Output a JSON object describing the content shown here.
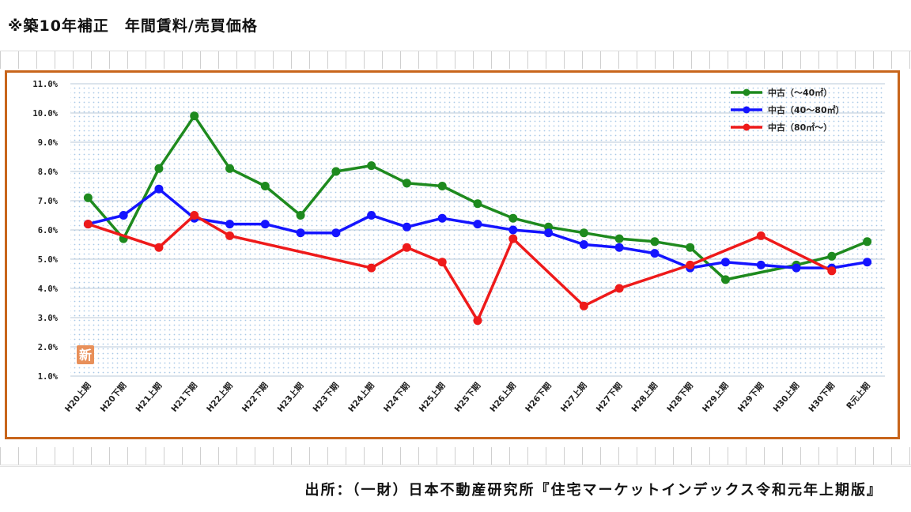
{
  "title": "※築10年補正　年間賃料/売買価格",
  "source": "出所：（一財）日本不動産研究所『住宅マーケットインデックス令和元年上期版』",
  "stamp_label": "新",
  "colors": {
    "frame": "#c8651b",
    "plot_dots": "#a9c8e6",
    "gridline": "#b8c8d8",
    "stamp": "#e8905a"
  },
  "chart_data": {
    "type": "line",
    "categories": [
      "H20上期",
      "H20下期",
      "H21上期",
      "H21下期",
      "H22上期",
      "H22下期",
      "H23上期",
      "H23下期",
      "H24上期",
      "H24下期",
      "H25上期",
      "H25下期",
      "H26上期",
      "H26下期",
      "H27上期",
      "H27下期",
      "H28上期",
      "H28下期",
      "H29上期",
      "H29下期",
      "H30上期",
      "H30下期",
      "R元上期"
    ],
    "y_ticks": [
      "1.0%",
      "2.0%",
      "3.0%",
      "4.0%",
      "5.0%",
      "6.0%",
      "7.0%",
      "8.0%",
      "9.0%",
      "10.0%",
      "11.0%"
    ],
    "ylim": [
      1.0,
      11.0
    ],
    "grid": true,
    "legend_position": "top-right",
    "series": [
      {
        "name": "中古（～40㎡）",
        "color": "#1e8a1e",
        "values": [
          7.1,
          5.7,
          8.1,
          9.9,
          8.1,
          7.5,
          6.5,
          8.0,
          8.2,
          7.6,
          7.5,
          6.9,
          6.4,
          6.1,
          5.9,
          5.7,
          5.6,
          5.4,
          4.3,
          null,
          4.8,
          5.1,
          5.6
        ]
      },
      {
        "name": "中古（40～80㎡）",
        "color": "#1414ff",
        "values": [
          6.2,
          6.5,
          7.4,
          6.4,
          6.2,
          6.2,
          5.9,
          5.9,
          6.5,
          6.1,
          6.4,
          6.2,
          6.0,
          5.9,
          5.5,
          5.4,
          5.2,
          4.7,
          4.9,
          4.8,
          4.7,
          4.7,
          4.9
        ]
      },
      {
        "name": "中古（80㎡～）",
        "color": "#ee1a1a",
        "values": [
          6.2,
          null,
          5.4,
          6.5,
          5.8,
          null,
          null,
          null,
          4.7,
          5.4,
          4.9,
          2.9,
          5.7,
          null,
          3.4,
          4.0,
          null,
          4.8,
          null,
          5.8,
          null,
          4.6,
          null
        ]
      }
    ]
  }
}
